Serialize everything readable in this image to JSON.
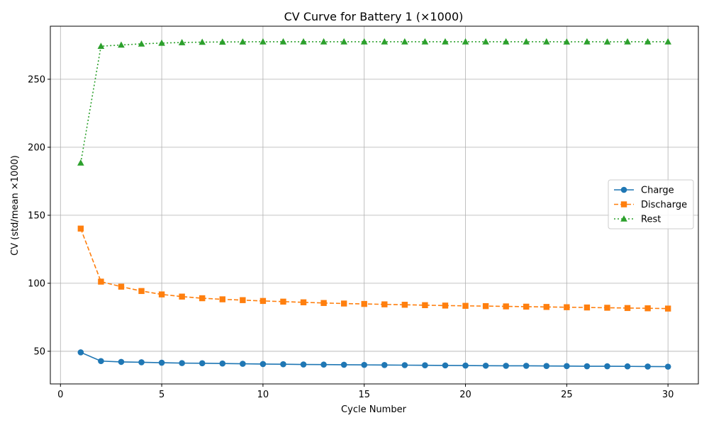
{
  "chart_data": {
    "type": "line",
    "title": "CV Curve for Battery 1 (×1000)",
    "xlabel": "Cycle Number",
    "ylabel": "CV (std/mean ×1000)",
    "xlim": [
      -0.5,
      31.5
    ],
    "ylim": [
      26,
      289
    ],
    "xticks": [
      0,
      5,
      10,
      15,
      20,
      25,
      30
    ],
    "yticks": [
      50,
      100,
      150,
      200,
      250
    ],
    "grid": true,
    "legend_position": "center-right",
    "x": [
      1,
      2,
      3,
      4,
      5,
      6,
      7,
      8,
      9,
      10,
      11,
      12,
      13,
      14,
      15,
      16,
      17,
      18,
      19,
      20,
      21,
      22,
      23,
      24,
      25,
      26,
      27,
      28,
      29,
      30
    ],
    "series": [
      {
        "name": "Charge",
        "color": "#1f77b4",
        "marker": "circle",
        "linestyle": "solid",
        "values": [
          49.2,
          42.8,
          42.2,
          41.9,
          41.6,
          41.3,
          41.2,
          41.0,
          40.8,
          40.6,
          40.5,
          40.3,
          40.2,
          40.1,
          40.0,
          39.9,
          39.8,
          39.7,
          39.6,
          39.5,
          39.4,
          39.3,
          39.3,
          39.2,
          39.1,
          39.0,
          39.0,
          38.9,
          38.8,
          38.7
        ]
      },
      {
        "name": "Discharge",
        "color": "#ff7f0e",
        "marker": "square",
        "linestyle": "dashed",
        "values": [
          140.2,
          101.2,
          97.5,
          94.3,
          91.8,
          90.2,
          89.0,
          88.2,
          87.6,
          87.0,
          86.5,
          86.0,
          85.5,
          85.1,
          84.8,
          84.5,
          84.2,
          83.9,
          83.6,
          83.4,
          83.2,
          83.0,
          82.8,
          82.6,
          82.4,
          82.2,
          82.0,
          81.8,
          81.6,
          81.4
        ]
      },
      {
        "name": "Rest",
        "color": "#2ca02c",
        "marker": "triangle",
        "linestyle": "dotted",
        "values": [
          188.5,
          274.3,
          275.2,
          276.0,
          276.6,
          277.0,
          277.3,
          277.4,
          277.5,
          277.6,
          277.6,
          277.6,
          277.6,
          277.6,
          277.6,
          277.6,
          277.6,
          277.6,
          277.6,
          277.6,
          277.6,
          277.6,
          277.6,
          277.6,
          277.5,
          277.6,
          277.5,
          277.6,
          277.6,
          277.6
        ]
      }
    ]
  }
}
